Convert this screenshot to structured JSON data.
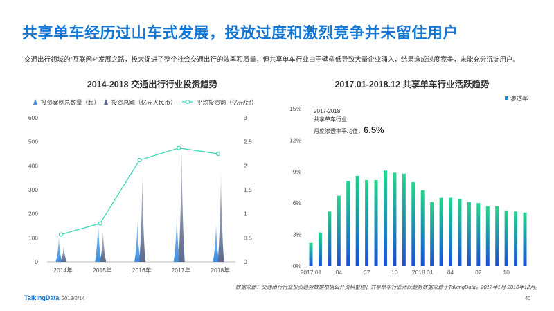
{
  "page": {
    "title": "共享单车经历过山车式发展，投放过度和激烈竞争并未留住用户",
    "subtitle": "交通出行领域的“互联网+”发展之路，极大促进了整个社会交通出行的效率和质量，但共享单车行业由于壁垒低导致大量企业涌入，结果造成过度竞争，未能充分沉淀用户。",
    "source": "数据来源：交通出行行业投资趋势数据根据公开资料整理；共享单车行业活跃趋势数据来源于TalkingData，2017年1月-2018年12月。",
    "brand": "TalkingData",
    "date": "2019/2/14",
    "page_number": "40"
  },
  "colors": {
    "title_blue": "#1677d2",
    "case_count": "#3d8fe0",
    "invest_total": "#5b6a8c",
    "avg_line": "#3ed6b6",
    "bar_top": "#22d68a",
    "bar_bottom": "#1a4fd6"
  },
  "chart_data": [
    {
      "type": "area",
      "title": "2014-2018  交通出行行业投资趋势",
      "categories": [
        "2014年",
        "2015年",
        "2016年",
        "2017年",
        "2018年"
      ],
      "legend_position": "top",
      "y_left_ticks": [
        "0",
        "100",
        "200",
        "300",
        "400",
        "500",
        "600"
      ],
      "y_right_ticks": [
        "0",
        "0.5",
        "1",
        "1.5",
        "2",
        "2.5",
        "3"
      ],
      "ylim_left": [
        0,
        600
      ],
      "ylim_right": [
        0,
        3
      ],
      "grid": false,
      "series": [
        {
          "name": "投资案例总数量（起）",
          "kind": "spike",
          "axis": "left",
          "values": [
            105,
            180,
            170,
            200,
            160
          ]
        },
        {
          "name": "投资总额（亿元人民币）",
          "kind": "spike",
          "axis": "left",
          "values": [
            70,
            130,
            360,
            480,
            370
          ]
        },
        {
          "name": "平均投资额（亿元/起）",
          "kind": "line",
          "axis": "right",
          "values": [
            0.57,
            0.8,
            2.12,
            2.37,
            2.25
          ]
        }
      ]
    },
    {
      "type": "bar",
      "title": "2017.01-2018.12  共享单车行业活跃趋势",
      "legend_position": "top-right",
      "series_name": "渗透率",
      "categories": [
        "2017.01",
        "02",
        "03",
        "04",
        "05",
        "06",
        "07",
        "08",
        "09",
        "10",
        "11",
        "12",
        "2018.01",
        "02",
        "03",
        "04",
        "05",
        "06",
        "07",
        "08",
        "09",
        "10",
        "11",
        "12"
      ],
      "x_tick_labels": [
        "2017.01",
        "04",
        "07",
        "10",
        "2018.01",
        "04",
        "07",
        "10"
      ],
      "values": [
        2.2,
        3.2,
        5.2,
        6.7,
        8.1,
        8.6,
        8.2,
        8.2,
        9.1,
        8.9,
        8.8,
        8.0,
        7.2,
        6.1,
        6.5,
        6.5,
        6.4,
        6.1,
        6.0,
        5.7,
        5.7,
        5.3,
        5.2,
        5.1
      ],
      "y_ticks": [
        "0%",
        "3%",
        "6%",
        "9%",
        "12%",
        "15%"
      ],
      "ylim": [
        0,
        15
      ],
      "grid": false,
      "note_line1": "2017-2018",
      "note_line2": "共享单车行业",
      "note_line3": "月度渗透率平均值：",
      "note_value": "6.5%"
    }
  ]
}
